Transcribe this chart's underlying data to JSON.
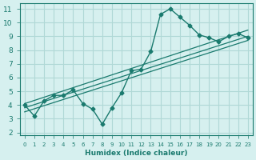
{
  "xlabel": "Humidex (Indice chaleur)",
  "ylabel": "",
  "bg_color": "#d6f0ef",
  "grid_color": "#b0d8d6",
  "line_color": "#1a7a6e",
  "xlim": [
    -0.5,
    23.5
  ],
  "ylim": [
    1.8,
    11.4
  ],
  "xticks": [
    0,
    1,
    2,
    3,
    4,
    5,
    6,
    7,
    8,
    9,
    10,
    11,
    12,
    13,
    14,
    15,
    16,
    17,
    18,
    19,
    20,
    21,
    22,
    23
  ],
  "yticks": [
    2,
    3,
    4,
    5,
    6,
    7,
    8,
    9,
    10,
    11
  ],
  "main_line_x": [
    0,
    1,
    2,
    3,
    4,
    5,
    6,
    7,
    8,
    9,
    10,
    11,
    12,
    13,
    14,
    15,
    16,
    17,
    18,
    19,
    20,
    21,
    22,
    23
  ],
  "main_line_y": [
    4.0,
    3.2,
    4.3,
    4.7,
    4.7,
    5.1,
    4.1,
    3.7,
    2.6,
    3.8,
    4.9,
    6.5,
    6.6,
    7.9,
    10.6,
    11.0,
    10.4,
    9.8,
    9.1,
    8.9,
    8.6,
    9.0,
    9.2,
    8.9
  ],
  "line2_x": [
    0,
    23
  ],
  "line2_y": [
    3.8,
    9.0
  ],
  "line3_x": [
    0,
    23
  ],
  "line3_y": [
    3.5,
    8.7
  ],
  "line4_x": [
    0,
    23
  ],
  "line4_y": [
    4.1,
    9.45
  ]
}
